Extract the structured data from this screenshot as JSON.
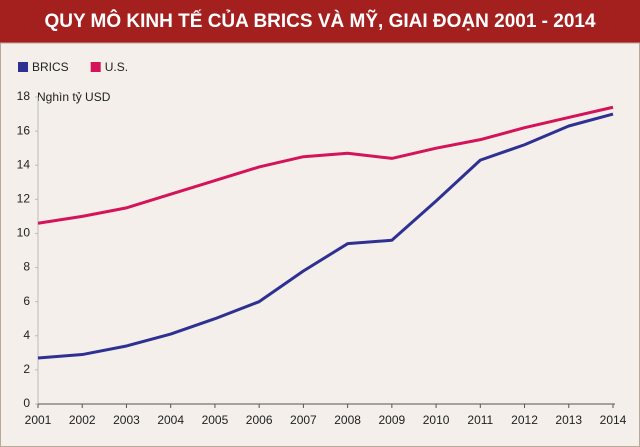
{
  "chart_data": {
    "type": "line",
    "title": "QUY MÔ KINH TẾ CỦA BRICS VÀ MỸ, GIAI ĐOẠN 2001 - 2014",
    "y_label": "Nghìn tỷ USD",
    "x": [
      2001,
      2002,
      2003,
      2004,
      2005,
      2006,
      2007,
      2008,
      2009,
      2010,
      2011,
      2012,
      2013,
      2014
    ],
    "series": [
      {
        "name": "BRICS",
        "color": "#2e3192",
        "values": [
          2.7,
          2.9,
          3.4,
          4.1,
          5.0,
          6.0,
          7.8,
          9.4,
          9.6,
          11.9,
          14.3,
          15.2,
          16.3,
          17.0
        ]
      },
      {
        "name": "U.S.",
        "color": "#d4145a",
        "values": [
          10.6,
          11.0,
          11.5,
          12.3,
          13.1,
          13.9,
          14.5,
          14.7,
          14.4,
          15.0,
          15.5,
          16.2,
          16.8,
          17.4
        ]
      }
    ],
    "xlim": [
      2001,
      2014
    ],
    "xticks": [
      2001,
      2002,
      2003,
      2004,
      2005,
      2006,
      2007,
      2008,
      2009,
      2010,
      2011,
      2012,
      2013,
      2014
    ],
    "ylim": [
      0,
      18
    ],
    "yticks": [
      0,
      2,
      4,
      6,
      8,
      10,
      12,
      14,
      16,
      18
    ],
    "grid": false,
    "legend": "top-left"
  }
}
